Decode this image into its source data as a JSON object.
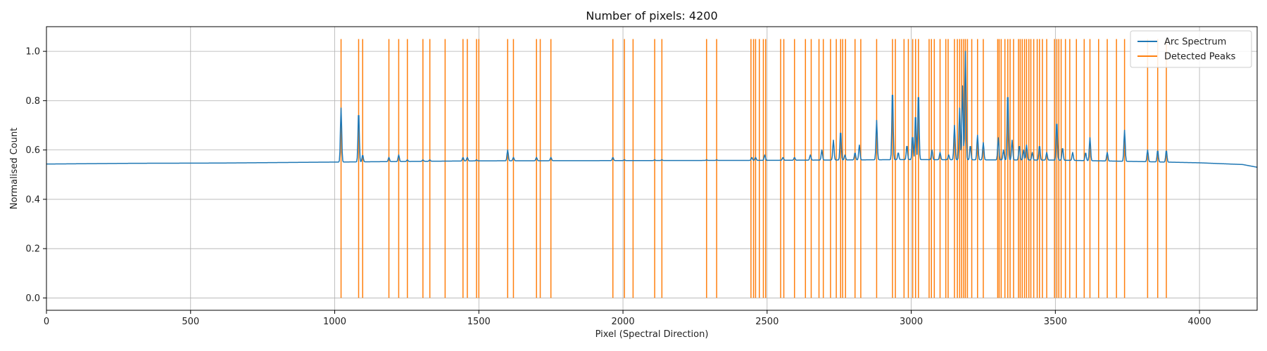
{
  "chart_data": {
    "type": "line",
    "title": "Number of pixels: 4200",
    "xlabel": "Pixel (Spectral Direction)",
    "ylabel": "Normalised Count",
    "xlim": [
      0,
      4200
    ],
    "ylim": [
      -0.05,
      1.1
    ],
    "xticks": [
      0,
      500,
      1000,
      1500,
      2000,
      2500,
      3000,
      3500,
      4000
    ],
    "yticks": [
      0.0,
      0.2,
      0.4,
      0.6,
      0.8,
      1.0
    ],
    "grid": true,
    "legend_position": "top-right",
    "series": [
      {
        "name": "Arc Spectrum",
        "color": "#1f77b4",
        "baseline": [
          [
            0,
            0.543
          ],
          [
            100,
            0.544
          ],
          [
            300,
            0.546
          ],
          [
            600,
            0.547
          ],
          [
            1000,
            0.551
          ],
          [
            1500,
            0.556
          ],
          [
            2000,
            0.557
          ],
          [
            2500,
            0.558
          ],
          [
            3000,
            0.561
          ],
          [
            3500,
            0.559
          ],
          [
            3800,
            0.553
          ],
          [
            4000,
            0.548
          ],
          [
            4150,
            0.541
          ],
          [
            4200,
            0.53
          ]
        ],
        "peaks": [
          [
            1022,
            0.77
          ],
          [
            1083,
            0.76
          ],
          [
            1097,
            0.58
          ],
          [
            1188,
            0.57
          ],
          [
            1222,
            0.58
          ],
          [
            1252,
            0.56
          ],
          [
            1306,
            0.56
          ],
          [
            1330,
            0.56
          ],
          [
            1445,
            0.57
          ],
          [
            1460,
            0.57
          ],
          [
            1492,
            0.56
          ],
          [
            1600,
            0.6
          ],
          [
            1620,
            0.57
          ],
          [
            1700,
            0.57
          ],
          [
            1750,
            0.57
          ],
          [
            1965,
            0.57
          ],
          [
            2005,
            0.56
          ],
          [
            2110,
            0.56
          ],
          [
            2135,
            0.56
          ],
          [
            2290,
            0.56
          ],
          [
            2325,
            0.56
          ],
          [
            2447,
            0.57
          ],
          [
            2460,
            0.57
          ],
          [
            2492,
            0.58
          ],
          [
            2555,
            0.57
          ],
          [
            2595,
            0.57
          ],
          [
            2650,
            0.58
          ],
          [
            2690,
            0.6
          ],
          [
            2730,
            0.64
          ],
          [
            2755,
            0.68
          ],
          [
            2770,
            0.58
          ],
          [
            2805,
            0.59
          ],
          [
            2820,
            0.62
          ],
          [
            2880,
            0.72
          ],
          [
            2935,
            0.85
          ],
          [
            2955,
            0.59
          ],
          [
            2985,
            0.62
          ],
          [
            3005,
            0.66
          ],
          [
            3015,
            0.75
          ],
          [
            3025,
            0.84
          ],
          [
            3072,
            0.6
          ],
          [
            3100,
            0.59
          ],
          [
            3130,
            0.58
          ],
          [
            3150,
            0.7
          ],
          [
            3168,
            0.77
          ],
          [
            3178,
            0.86
          ],
          [
            3188,
            1.0
          ],
          [
            3205,
            0.62
          ],
          [
            3230,
            0.66
          ],
          [
            3250,
            0.63
          ],
          [
            3302,
            0.65
          ],
          [
            3320,
            0.6
          ],
          [
            3335,
            0.84
          ],
          [
            3350,
            0.64
          ],
          [
            3375,
            0.62
          ],
          [
            3390,
            0.6
          ],
          [
            3400,
            0.62
          ],
          [
            3420,
            0.59
          ],
          [
            3445,
            0.62
          ],
          [
            3470,
            0.59
          ],
          [
            3505,
            0.72
          ],
          [
            3525,
            0.61
          ],
          [
            3560,
            0.59
          ],
          [
            3605,
            0.59
          ],
          [
            3620,
            0.65
          ],
          [
            3680,
            0.59
          ],
          [
            3740,
            0.68
          ],
          [
            3820,
            0.6
          ],
          [
            3855,
            0.6
          ],
          [
            3885,
            0.6
          ]
        ]
      },
      {
        "name": "Detected Peaks",
        "color": "#ff7f0e",
        "line_top": 1.05,
        "line_bottom": 0.0,
        "x": [
          1022,
          1083,
          1097,
          1188,
          1222,
          1252,
          1306,
          1330,
          1383,
          1445,
          1460,
          1492,
          1500,
          1600,
          1620,
          1700,
          1713,
          1750,
          1965,
          2005,
          2035,
          2110,
          2135,
          2290,
          2325,
          2444,
          2453,
          2460,
          2473,
          2487,
          2495,
          2547,
          2558,
          2595,
          2633,
          2653,
          2680,
          2695,
          2720,
          2740,
          2755,
          2762,
          2772,
          2805,
          2825,
          2880,
          2935,
          2945,
          2975,
          2990,
          3005,
          3015,
          3025,
          3062,
          3070,
          3080,
          3100,
          3120,
          3128,
          3150,
          3160,
          3168,
          3175,
          3182,
          3188,
          3195,
          3210,
          3230,
          3250,
          3300,
          3305,
          3312,
          3325,
          3335,
          3343,
          3355,
          3372,
          3378,
          3385,
          3393,
          3400,
          3408,
          3415,
          3425,
          3437,
          3445,
          3455,
          3470,
          3497,
          3505,
          3512,
          3520,
          3535,
          3550,
          3573,
          3600,
          3620,
          3650,
          3680,
          3712,
          3740,
          3820,
          3855,
          3885
        ]
      }
    ]
  }
}
